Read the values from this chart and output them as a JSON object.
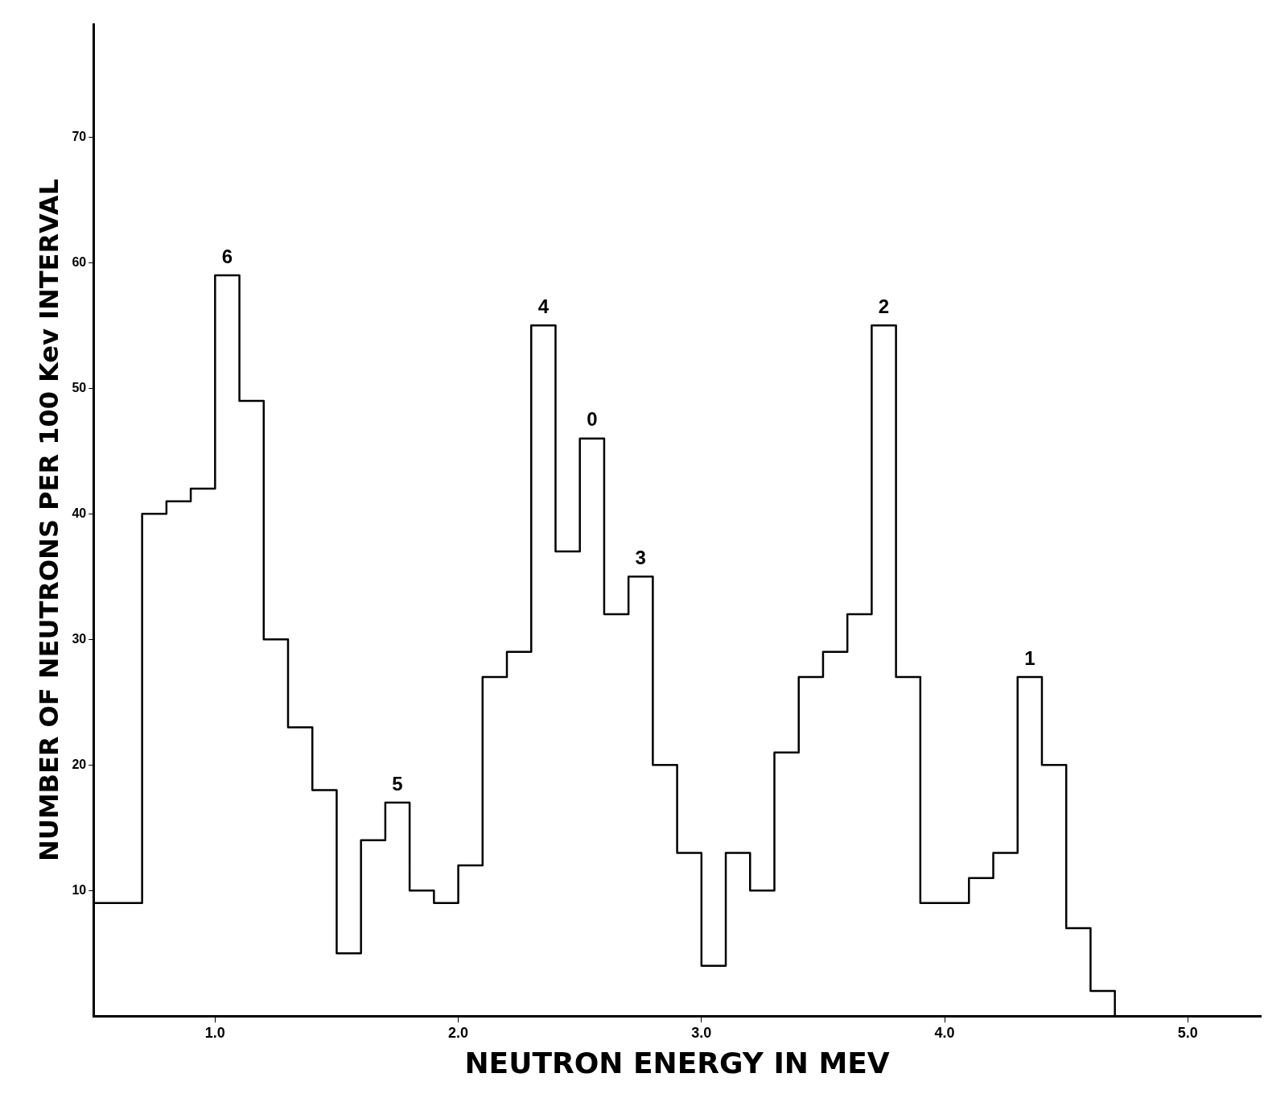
{
  "chart_data": {
    "type": "histogram",
    "xlabel": "NEUTRON ENERGY IN MEV",
    "ylabel": "NUMBER OF NEUTRONS PER 100 Kev INTERVAL",
    "color": "#000000",
    "bins": [
      0.5,
      0.6,
      0.7,
      0.8,
      0.9,
      1.0,
      1.1,
      1.2,
      1.3,
      1.4,
      1.5,
      1.6,
      1.7,
      1.8,
      1.9,
      2.0,
      2.1,
      2.2,
      2.3,
      2.4,
      2.5,
      2.6,
      2.7,
      2.8,
      2.9,
      3.0,
      3.1,
      3.2,
      3.3,
      3.4,
      3.5,
      3.6,
      3.7,
      3.8,
      3.9,
      4.0,
      4.1,
      4.2,
      4.3,
      4.4,
      4.5,
      4.6,
      4.7
    ],
    "values": [
      9,
      9,
      40,
      41,
      42,
      59,
      49,
      30,
      23,
      18,
      5,
      14,
      17,
      10,
      9,
      12,
      27,
      29,
      55,
      37,
      46,
      32,
      35,
      20,
      13,
      4,
      13,
      10,
      21,
      27,
      29,
      32,
      55,
      27,
      9,
      9,
      11,
      13,
      27,
      20,
      7,
      2
    ],
    "xlim": [
      0.5,
      5.3
    ],
    "ylim": [
      0,
      79
    ],
    "xticks": [
      {
        "value": 1,
        "label": "1.0"
      },
      {
        "value": 2,
        "label": "2.0"
      },
      {
        "value": 3,
        "label": "3.0"
      },
      {
        "value": 4,
        "label": "4.0"
      },
      {
        "value": 5,
        "label": "5.0"
      }
    ],
    "yticks": [
      10,
      20,
      30,
      40,
      50,
      60,
      70
    ],
    "grid": false,
    "annotations": [
      {
        "text": "6",
        "x": 1.05,
        "y": 59
      },
      {
        "text": "5",
        "x": 1.75,
        "y": 17
      },
      {
        "text": "4",
        "x": 2.35,
        "y": 55
      },
      {
        "text": "0",
        "x": 2.55,
        "y": 46
      },
      {
        "text": "3",
        "x": 2.75,
        "y": 35
      },
      {
        "text": "2",
        "x": 3.75,
        "y": 55
      },
      {
        "text": "1",
        "x": 4.35,
        "y": 27
      }
    ]
  }
}
